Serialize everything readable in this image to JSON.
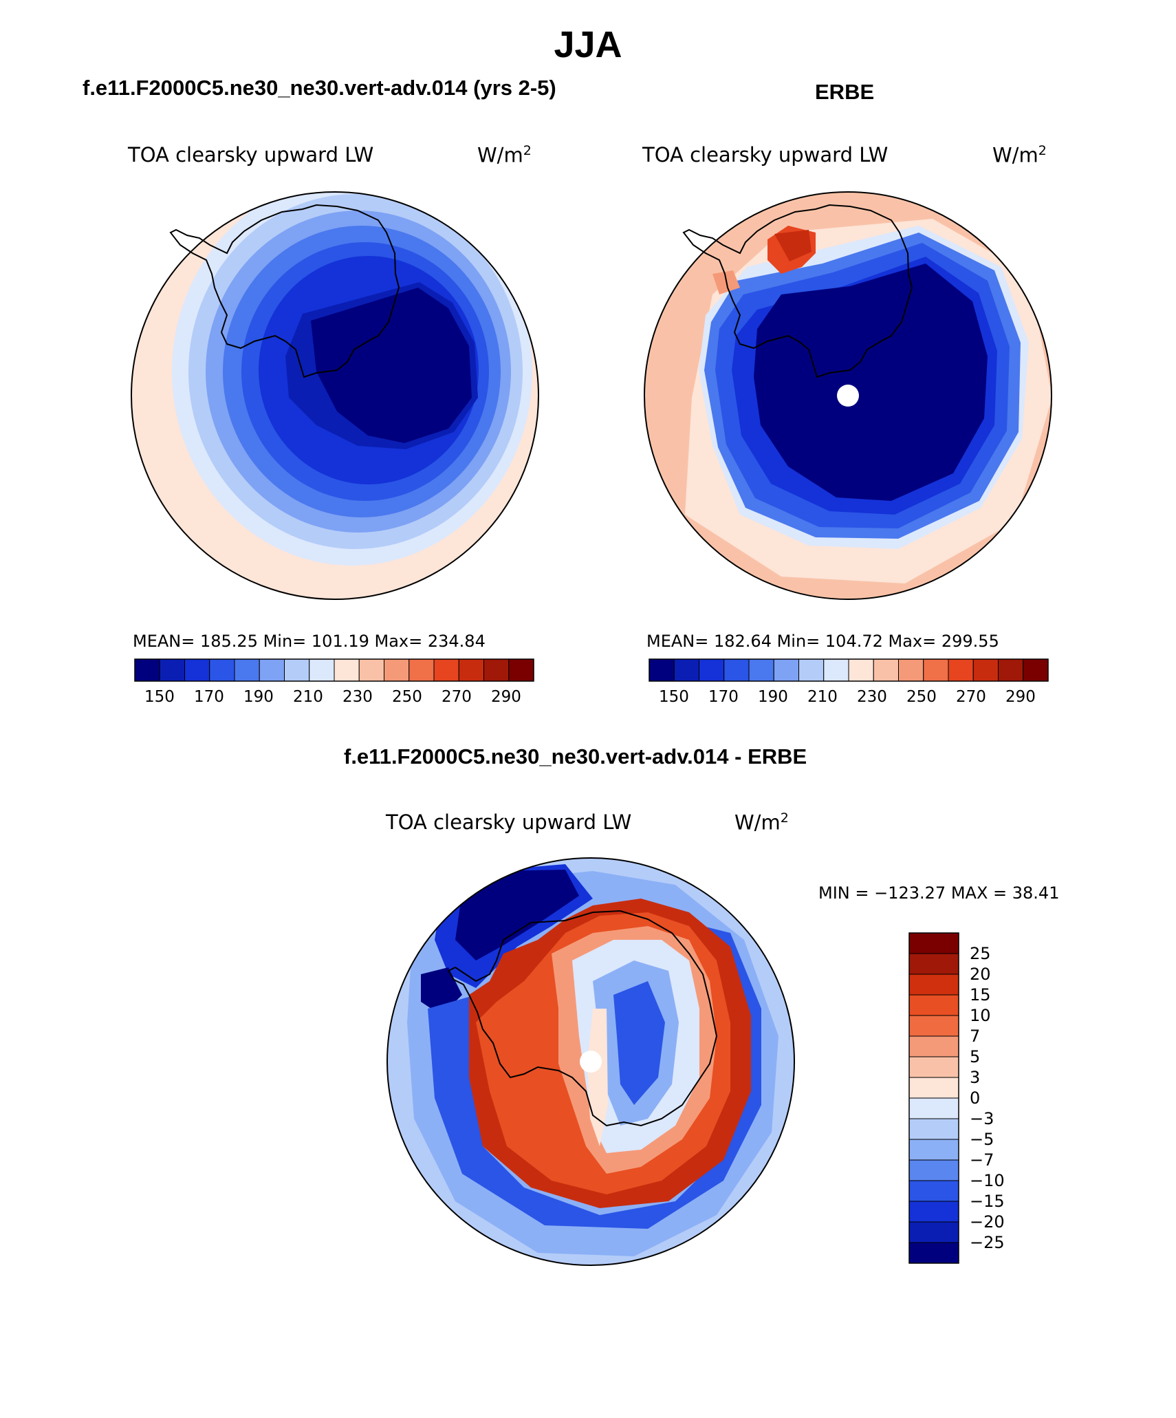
{
  "main_title": "JJA",
  "panels": [
    {
      "title": "f.e11.F2000C5.ne30_ne30.vert-adv.014 (yrs 2-5)",
      "variable": "TOA clearsky upward LW",
      "units": "W/m",
      "units_superscript": "2",
      "stats": "MEAN= 185.25   Min= 101.19   Max= 234.84"
    },
    {
      "title": "ERBE",
      "variable": "TOA clearsky upward LW",
      "units": "W/m",
      "units_superscript": "2",
      "stats": "MEAN= 182.64   Min= 104.72   Max= 299.55"
    },
    {
      "title": "f.e11.F2000C5.ne30_ne30.vert-adv.014 - ERBE",
      "variable": "TOA clearsky upward LW",
      "units": "W/m",
      "units_superscript": "2",
      "stats": "MIN = −123.27 MAX =   38.41"
    }
  ],
  "colorbar_abs": {
    "tick_labels": [
      "150",
      "170",
      "190",
      "210",
      "230",
      "250",
      "270",
      "290"
    ],
    "colors": [
      "#00007f",
      "#0a1eb4",
      "#1432d8",
      "#2a55e6",
      "#4a78ee",
      "#7ea2f4",
      "#b4ccf8",
      "#dce8fc",
      "#fde5d8",
      "#f9c2a8",
      "#f59a78",
      "#f07048",
      "#e64520",
      "#c82c0e",
      "#a01808",
      "#7a0000"
    ]
  },
  "colorbar_diff": {
    "tick_labels": [
      "25",
      "20",
      "15",
      "10",
      "7",
      "5",
      "3",
      "0",
      "−3",
      "−5",
      "−7",
      "−10",
      "−15",
      "−20",
      "−25"
    ],
    "colors_top_to_bottom": [
      "#7a0000",
      "#a01808",
      "#d0300e",
      "#e84f22",
      "#f06c40",
      "#f59a78",
      "#f9c2a8",
      "#fde5d8",
      "#dce8fc",
      "#b4ccf8",
      "#8cb0f6",
      "#5a86f0",
      "#2a55e6",
      "#1432d8",
      "#0a1eb4",
      "#00007f"
    ]
  }
}
